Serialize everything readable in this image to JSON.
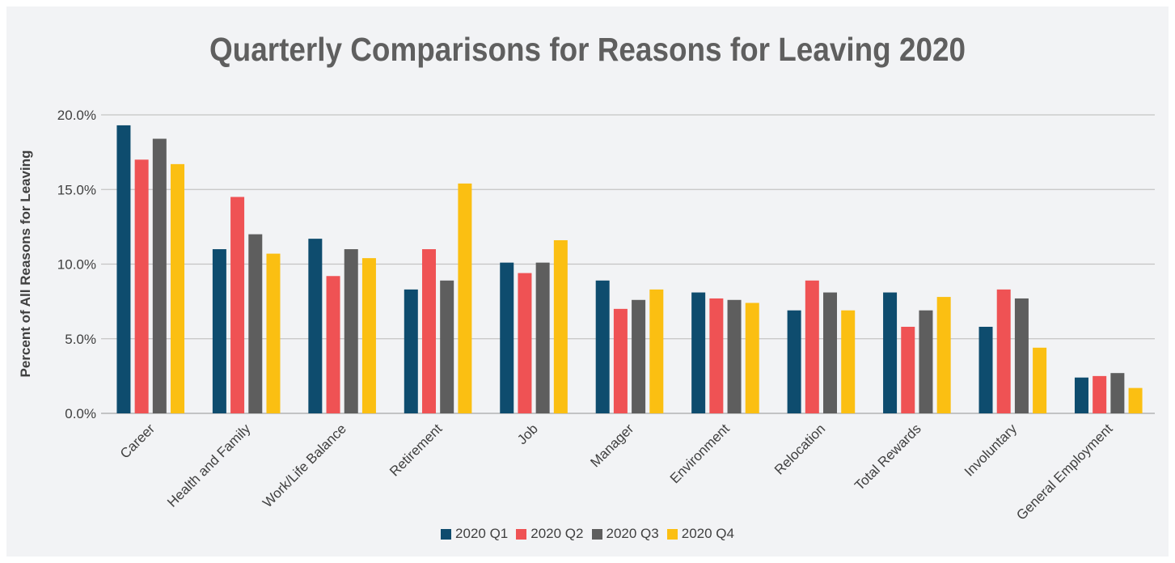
{
  "chart_data": {
    "type": "bar",
    "title": "Quarterly Comparisons for Reasons for Leaving 2020",
    "xlabel": "",
    "ylabel": "Percent of All Reasons for Leaving",
    "ylim": [
      0,
      20
    ],
    "yticks": [
      "0.0%",
      "5.0%",
      "10.0%",
      "15.0%",
      "20.0%"
    ],
    "grid": "horizontal",
    "legend_position": "bottom",
    "categories": [
      "Career",
      "Health and Family",
      "Work/Life Balance",
      "Retirement",
      "Job",
      "Manager",
      "Environment",
      "Relocation",
      "Total Rewards",
      "Involuntary",
      "General Employment"
    ],
    "series": [
      {
        "name": "2020 Q1",
        "color": "#0e4c6e",
        "values": [
          19.3,
          11.0,
          11.7,
          8.3,
          10.1,
          8.9,
          8.1,
          6.9,
          8.1,
          5.8,
          2.4
        ]
      },
      {
        "name": "2020 Q2",
        "color": "#ef5254",
        "values": [
          17.0,
          14.5,
          9.2,
          11.0,
          9.4,
          7.0,
          7.7,
          8.9,
          5.8,
          8.3,
          2.5
        ]
      },
      {
        "name": "2020 Q3",
        "color": "#5e5e5e",
        "values": [
          18.4,
          12.0,
          11.0,
          8.9,
          10.1,
          7.6,
          7.6,
          8.1,
          6.9,
          7.7,
          2.7
        ]
      },
      {
        "name": "2020 Q4",
        "color": "#fbbf12",
        "values": [
          16.7,
          10.7,
          10.4,
          15.4,
          11.6,
          8.3,
          7.4,
          6.9,
          7.8,
          4.4,
          1.7
        ]
      }
    ]
  }
}
